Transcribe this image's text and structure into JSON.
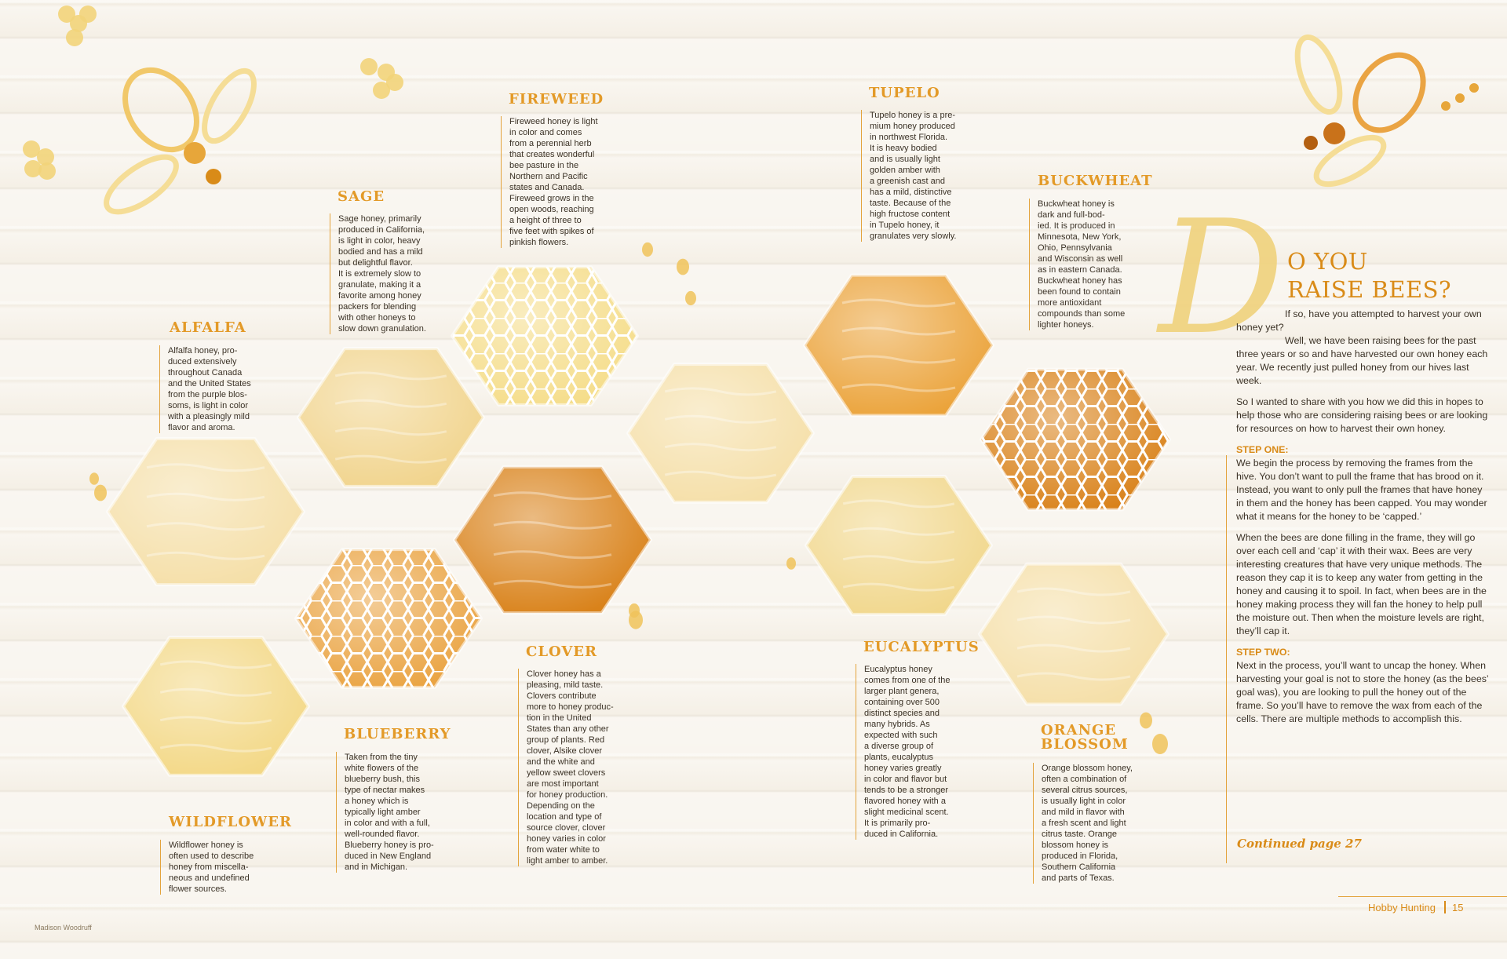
{
  "honeys": [
    {
      "id": "alfalfa",
      "name": "ALFALFA",
      "text": "Alfalfa honey, pro-\nduced extensively\nthroughout Canada\nand the United States\nfrom the purple blos-\nsoms, is light in color\nwith a pleasingly mild\nflavor and aroma."
    },
    {
      "id": "sage",
      "name": "SAGE",
      "text": "Sage honey, primarily\nproduced in California,\nis light in color, heavy\nbodied and has a mild\nbut delightful flavor.\nIt is extremely slow to\ngranulate, making it a\nfavorite among honey\npackers for blending\nwith other honeys to\nslow down granulation."
    },
    {
      "id": "fireweed",
      "name": "FIREWEED",
      "text": "Fireweed honey is light\nin color and comes\nfrom a perennial herb\nthat creates wonderful\nbee pasture in the\nNorthern and Pacific\nstates and Canada.\nFireweed grows in the\nopen woods, reaching\na height of three to\nfive feet with spikes of\npinkish flowers."
    },
    {
      "id": "tupelo",
      "name": "TUPELO",
      "text": "Tupelo honey is a pre-\nmium honey produced\nin northwest Florida.\nIt is heavy bodied\nand is usually light\ngolden amber with\na greenish cast and\nhas a mild, distinctive\ntaste. Because of the\nhigh fructose content\nin Tupelo honey, it\ngranulates very slowly."
    },
    {
      "id": "buckwheat",
      "name": "BUCKWHEAT",
      "text": "Buckwheat honey is\ndark and full-bod-\nied. It is produced in\nMinnesota, New York,\nOhio, Pennsylvania\nand Wisconsin as well\nas in eastern Canada.\nBuckwheat honey has\nbeen found to contain\nmore antioxidant\ncompounds than some\nlighter honeys."
    },
    {
      "id": "clover",
      "name": "CLOVER",
      "text": "Clover honey has a\npleasing, mild taste.\nClovers contribute\nmore to honey produc-\ntion in the United\nStates than any other\ngroup of plants. Red\nclover, Alsike clover\nand the white and\nyellow sweet clovers\nare most important\nfor honey production.\nDepending on the\nlocation and type of\nsource clover, clover\nhoney varies in color\nfrom water white to\nlight amber to amber."
    },
    {
      "id": "eucalyptus",
      "name": "EUCALYPTUS",
      "text": "Eucalyptus honey\ncomes from one of the\nlarger plant genera,\ncontaining over 500\ndistinct species and\nmany hybrids. As\nexpected with such\na diverse group of\nplants, eucalyptus\nhoney varies greatly\nin color and flavor but\ntends to be a stronger\nflavored honey with a\nslight medicinal scent.\nIt is primarily pro-\nduced in California."
    },
    {
      "id": "blueberry",
      "name": "BLUEBERRY",
      "text": "Taken from the tiny\nwhite flowers of the\nblueberry bush, this\ntype of nectar makes\na honey which is\ntypically light amber\nin color and with a full,\nwell-rounded flavor.\nBlueberry honey is pro-\nduced in New England\nand in Michigan."
    },
    {
      "id": "wildflower",
      "name": "WILDFLOWER",
      "text": "Wildflower honey is\noften used to describe\nhoney from miscella-\nneous and undefined\nflower sources."
    },
    {
      "id": "orange",
      "name": "ORANGE\nBLOSSOM",
      "text": "Orange blossom honey,\noften a combination of\nseveral citrus sources,\nis usually light in color\nand mild in flavor with\na fresh scent and light\ncitrus taste. Orange\nblossom honey is\nproduced in Florida,\nSouthern California\nand parts of Texas."
    }
  ],
  "article": {
    "dropcap": "D",
    "title_line1": "O YOU",
    "title_line2": "RAISE BEES?",
    "p1": "If so, have you attempted to harvest your own honey yet?",
    "p2": "Well, we have been raising bees for the past three years or so and have harvested our own honey each year. We recently just pulled honey from our hives last week.",
    "p3": "So I wanted to share with you how we did this in hopes to help those who are considering raising bees or are looking for resources on how to harvest their own honey.",
    "step1_label": "STEP ONE:",
    "step1_p1": "We begin the process by removing the frames from the hive. You don’t want to pull the frame that has brood on it. Instead, you want to only pull the frames that have honey in them and the honey has been capped. You may wonder what it means for the honey to be ‘capped.’",
    "step1_p2": "When the bees are done filling in the frame, they will go over each cell and ‘cap’ it with their wax. Bees are very interesting creatures that have very unique methods. The reason they cap it is to keep any water from getting in the honey and causing it to spoil. In fact, when bees are in the honey making process they will fan the honey to help pull the moisture out. Then when the moisture levels are right, they’ll cap it.",
    "step2_label": "STEP TWO:",
    "step2_p1": "Next in the process, you’ll want to uncap the honey. When harvesting your goal is not to store the honey (as the bees’ goal was), you are looking to pull the honey out of the frame. So you’ll have to remove the wax from each of the cells. There are multiple methods to accomplish this.",
    "continued": "Continued page 27"
  },
  "footer": {
    "section": "Hobby Hunting",
    "page": "15"
  },
  "credit": "Madison Woodruff",
  "colors": {
    "accent": "#e39a28",
    "dark_honey": "#d9821a",
    "light_honey": "#f1d48d",
    "pale_honey": "#f5dfa8",
    "amber": "#eaa443"
  }
}
